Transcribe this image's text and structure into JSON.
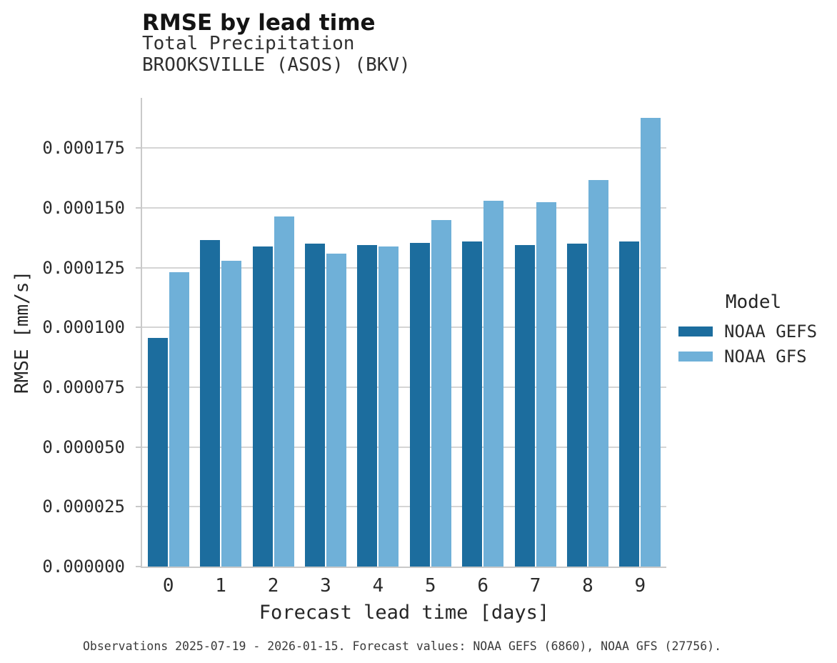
{
  "header": {
    "title": "RMSE by lead time",
    "subtitle_line1": "Total Precipitation",
    "subtitle_line2": "BROOKSVILLE (ASOS) (BKV)"
  },
  "chart_data": {
    "type": "bar",
    "title": "RMSE by lead time",
    "subtitle": [
      "Total Precipitation",
      "BROOKSVILLE (ASOS) (BKV)"
    ],
    "xlabel": "Forecast lead time [days]",
    "ylabel": "RMSE [mm/s]",
    "categories": [
      "0",
      "1",
      "2",
      "3",
      "4",
      "5",
      "6",
      "7",
      "8",
      "9"
    ],
    "series": [
      {
        "name": "NOAA GEFS",
        "color": "#1c6d9e",
        "values": [
          9.55e-05,
          0.0001365,
          0.000134,
          0.000135,
          0.0001345,
          0.0001355,
          0.000136,
          0.0001345,
          0.000135,
          0.000136
        ]
      },
      {
        "name": "NOAA GFS",
        "color": "#6fb0d8",
        "values": [
          0.000123,
          0.000128,
          0.0001465,
          0.000131,
          0.000134,
          0.000145,
          0.000153,
          0.0001525,
          0.0001615,
          0.0001875
        ]
      }
    ],
    "ylim": [
      0,
      0.000196
    ],
    "yticks": {
      "values": [
        0,
        2.5e-05,
        5e-05,
        7.5e-05,
        0.0001,
        0.000125,
        0.00015,
        0.000175
      ],
      "labels": [
        "0.000000",
        "0.000025",
        "0.000050",
        "0.000075",
        "0.000100",
        "0.000125",
        "0.000150",
        "0.000175"
      ]
    },
    "grid": "horizontal",
    "legend": {
      "title": "Model",
      "position": "right"
    }
  },
  "legend": {
    "title": "Model",
    "entries": [
      {
        "label": "NOAA GEFS",
        "color": "#1c6d9e"
      },
      {
        "label": "NOAA GFS",
        "color": "#6fb0d8"
      }
    ]
  },
  "footer": {
    "caption": "Observations 2025-07-19 - 2026-01-15. Forecast values: NOAA GEFS (6860), NOAA GFS (27756)."
  },
  "colors": {
    "gefs_bar": "#1c6d9e",
    "gfs_bar": "#6fb0d8",
    "gridline": "#d5d5d5",
    "spine": "#c9c9c9",
    "title_text": "#141414",
    "body_text": "#2b2b2b"
  }
}
